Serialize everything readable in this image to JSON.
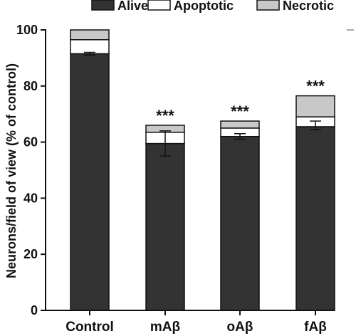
{
  "chart_data": {
    "type": "bar",
    "stacked": true,
    "categories": [
      "Control",
      "mAβ",
      "oAβ",
      "fAβ"
    ],
    "series": [
      {
        "name": "Alive",
        "values": [
          91.5,
          59.5,
          62,
          65.5
        ],
        "color": "#333333"
      },
      {
        "name": "Apoptotic",
        "values": [
          5,
          4,
          3,
          3.5
        ],
        "color": "#ffffff"
      },
      {
        "name": "Necrotic",
        "values": [
          3.5,
          2.5,
          2.5,
          7.5
        ],
        "color": "#c8c8c8"
      }
    ],
    "error_bars": {
      "mean": [
        91.5,
        59.5,
        62,
        65.5
      ],
      "upper": [
        92,
        64,
        63,
        67.5
      ],
      "lower": [
        91,
        55,
        61,
        64.5
      ]
    },
    "significance": [
      "",
      "***",
      "***",
      "***"
    ],
    "ylabel": "Neurons/field of view (% of control)",
    "ylim": [
      0,
      100
    ],
    "yticks": [
      0,
      20,
      40,
      60,
      80,
      100
    ],
    "legend_position": "top",
    "grid": false
  }
}
